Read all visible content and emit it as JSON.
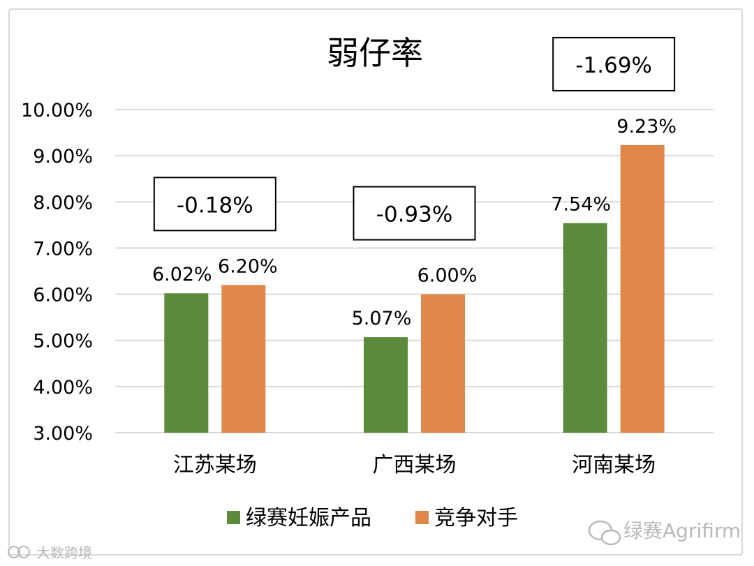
{
  "chart_data": {
    "type": "bar",
    "title": "弱仔率",
    "categories": [
      "江苏某场",
      "广西某场",
      "河南某场"
    ],
    "series": [
      {
        "name": "绿赛妊娠产品",
        "values": [
          6.02,
          5.07,
          7.54
        ],
        "color": "#5b8a3c"
      },
      {
        "name": "竞争对手",
        "values": [
          6.2,
          6.0,
          9.23
        ],
        "color": "#e0884a"
      }
    ],
    "data_labels": [
      [
        "6.02%",
        "5.07%",
        "7.54%"
      ],
      [
        "6.20%",
        "6.00%",
        "9.23%"
      ]
    ],
    "differences": [
      "-0.18%",
      "-0.93%",
      "-1.69%"
    ],
    "ylim": [
      3,
      10
    ],
    "yticks": [
      "3.00%",
      "4.00%",
      "5.00%",
      "6.00%",
      "7.00%",
      "8.00%",
      "9.00%",
      "10.00%"
    ],
    "xlabel": "",
    "ylabel": "",
    "grid": true,
    "legend_position": "bottom"
  },
  "watermarks": {
    "right": "绿赛Agrifirm",
    "left": "大数跨境"
  },
  "colors": {
    "grid": "#d9d9d9",
    "watermark": "#b8b8b8"
  }
}
